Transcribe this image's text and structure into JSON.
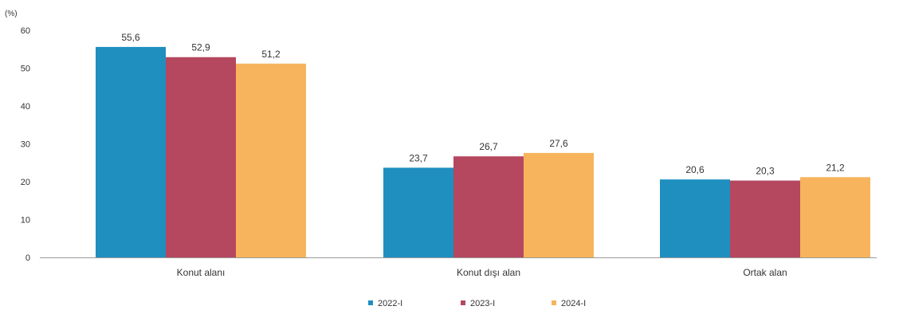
{
  "chart_data": {
    "type": "bar",
    "unit_label": "(%)",
    "categories": [
      "Konut alanı",
      "Konut dışı alan",
      "Ortak alan"
    ],
    "series": [
      {
        "name": "2022-I",
        "color": "#1f8fc0",
        "values": [
          55.6,
          23.7,
          20.6
        ],
        "labels": [
          "55,6",
          "23,7",
          "20,6"
        ]
      },
      {
        "name": "2023-I",
        "color": "#b5475e",
        "values": [
          52.9,
          26.7,
          20.3
        ],
        "labels": [
          "52,9",
          "26,7",
          "20,3"
        ]
      },
      {
        "name": "2024-I",
        "color": "#f7b45c",
        "values": [
          51.2,
          27.6,
          21.2
        ],
        "labels": [
          "51,2",
          "27,6",
          "21,2"
        ]
      }
    ],
    "yticks": [
      0,
      10,
      20,
      30,
      40,
      50,
      60
    ],
    "ylim": [
      0,
      60
    ],
    "grid": false,
    "legend_position": "bottom"
  }
}
